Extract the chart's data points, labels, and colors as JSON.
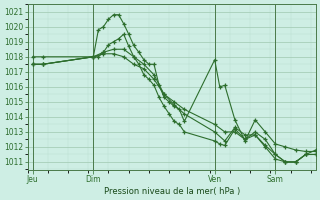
{
  "background_color": "#ceeee4",
  "grid_color_major": "#a0c8b0",
  "grid_color_minor": "#b8ddd0",
  "line_color": "#2d6e2d",
  "title": "Pression niveau de la mer( hPa )",
  "ylim": [
    1010.5,
    1021.5
  ],
  "yticks": [
    1011,
    1012,
    1013,
    1014,
    1015,
    1016,
    1017,
    1018,
    1019,
    1020,
    1021
  ],
  "xtick_labels": [
    "Jeu",
    "Dim",
    "Ven",
    "Sam"
  ],
  "xtick_positions": [
    0,
    12,
    36,
    48
  ],
  "xlim": [
    -1,
    56
  ],
  "series1_x": [
    0,
    2,
    12,
    13,
    14,
    15,
    16,
    17,
    18,
    19,
    20,
    21,
    22,
    23,
    24,
    25,
    26,
    27,
    28,
    29,
    30,
    36,
    37,
    38,
    40,
    42,
    44,
    46,
    48,
    50,
    52,
    54,
    56
  ],
  "series1_y": [
    1018.0,
    1018.0,
    1018.0,
    1019.8,
    1020.0,
    1020.5,
    1020.8,
    1020.8,
    1020.2,
    1019.5,
    1018.75,
    1018.3,
    1017.8,
    1017.5,
    1017.5,
    1016.1,
    1015.3,
    1015.0,
    1014.7,
    1014.5,
    1013.7,
    1017.8,
    1016.0,
    1016.1,
    1013.8,
    1012.4,
    1013.8,
    1013.0,
    1012.2,
    1012.0,
    1011.8,
    1011.7,
    1011.7
  ],
  "series2_x": [
    0,
    2,
    12,
    13,
    14,
    15,
    16,
    17,
    18,
    19,
    20,
    21,
    22,
    23,
    24,
    25,
    26,
    27,
    28,
    29,
    30,
    36,
    37,
    38,
    40,
    42,
    44,
    46,
    48,
    50,
    52,
    54,
    56
  ],
  "series2_y": [
    1017.5,
    1017.5,
    1018.0,
    1018.0,
    1018.3,
    1018.8,
    1019.0,
    1019.2,
    1019.5,
    1018.7,
    1018.0,
    1017.5,
    1016.8,
    1016.5,
    1016.1,
    1015.3,
    1014.7,
    1014.2,
    1013.7,
    1013.5,
    1013.0,
    1012.4,
    1012.2,
    1012.1,
    1013.2,
    1012.5,
    1012.8,
    1012.0,
    1011.2,
    1011.0,
    1011.0,
    1011.5,
    1011.8
  ],
  "series3_x": [
    0,
    2,
    12,
    14,
    16,
    18,
    20,
    22,
    24,
    26,
    28,
    30,
    36,
    38,
    40,
    42,
    44,
    46,
    48,
    50,
    52,
    54,
    56
  ],
  "series3_y": [
    1017.5,
    1017.5,
    1018.0,
    1018.3,
    1018.5,
    1018.5,
    1018.0,
    1017.5,
    1016.8,
    1015.5,
    1014.8,
    1014.2,
    1013.0,
    1012.4,
    1013.3,
    1012.8,
    1012.8,
    1012.1,
    1011.5,
    1011.0,
    1011.0,
    1011.5,
    1011.5
  ],
  "series4_x": [
    0,
    2,
    12,
    14,
    16,
    18,
    20,
    22,
    24,
    26,
    28,
    30,
    36,
    38,
    40,
    42,
    44,
    46,
    48,
    50,
    52,
    54,
    56
  ],
  "series4_y": [
    1017.5,
    1017.5,
    1018.0,
    1018.2,
    1018.2,
    1018.0,
    1017.5,
    1017.2,
    1016.5,
    1015.5,
    1015.0,
    1014.5,
    1013.5,
    1013.0,
    1013.0,
    1012.5,
    1013.0,
    1012.5,
    1011.5,
    1011.0,
    1011.0,
    1011.5,
    1011.5
  ],
  "vline_positions": [
    0,
    12,
    36,
    48
  ],
  "title_fontsize": 6,
  "tick_fontsize": 5.5
}
